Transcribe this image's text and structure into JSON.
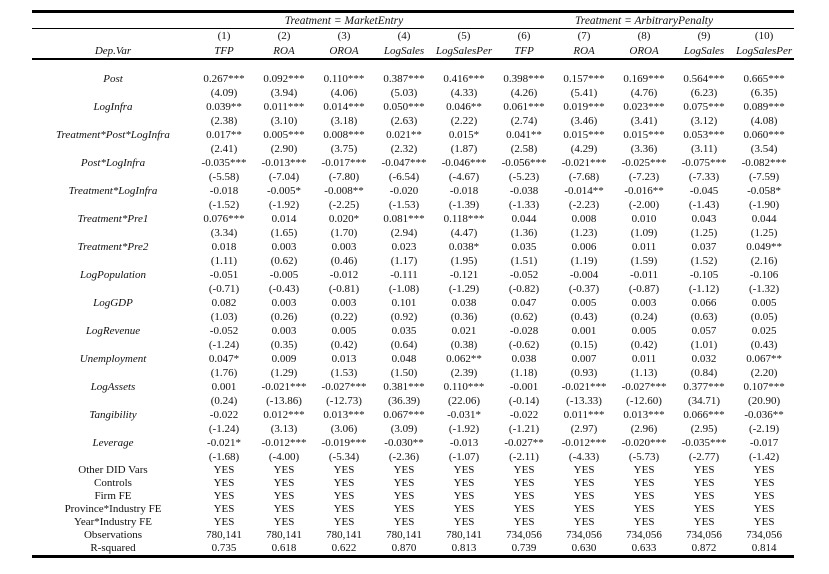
{
  "page": {
    "background": "#ffffff",
    "text_color": "#111111",
    "rule_color": "#000000"
  },
  "table": {
    "group_headers": [
      {
        "label": "Treatment = MarketEntry",
        "span": 5
      },
      {
        "label": "Treatment = ArbitraryPenalty",
        "span": 5
      }
    ],
    "col_numbers": [
      "(1)",
      "(2)",
      "(3)",
      "(4)",
      "(5)",
      "(6)",
      "(7)",
      "(8)",
      "(9)",
      "(10)"
    ],
    "dep_var_label": "Dep.Var",
    "dep_vars": [
      "TFP",
      "ROA",
      "OROA",
      "LogSales",
      "LogSalesPer",
      "TFP",
      "ROA",
      "OROA",
      "LogSales",
      "LogSalesPer"
    ],
    "coef_rows": [
      {
        "label": "Post",
        "coefs": [
          "0.267***",
          "0.092***",
          "0.110***",
          "0.387***",
          "0.416***",
          "0.398***",
          "0.157***",
          "0.169***",
          "0.564***",
          "0.665***"
        ],
        "tstats": [
          "(4.09)",
          "(3.94)",
          "(4.06)",
          "(5.03)",
          "(4.33)",
          "(4.26)",
          "(5.41)",
          "(4.76)",
          "(6.23)",
          "(6.35)"
        ]
      },
      {
        "label": "LogInfra",
        "coefs": [
          "0.039**",
          "0.011***",
          "0.014***",
          "0.050***",
          "0.046**",
          "0.061***",
          "0.019***",
          "0.023***",
          "0.075***",
          "0.089***"
        ],
        "tstats": [
          "(2.38)",
          "(3.10)",
          "(3.18)",
          "(2.63)",
          "(2.22)",
          "(2.74)",
          "(3.46)",
          "(3.41)",
          "(3.12)",
          "(4.08)"
        ]
      },
      {
        "label": "Treatment*Post*LogInfra",
        "coefs": [
          "0.017**",
          "0.005***",
          "0.008***",
          "0.021**",
          "0.015*",
          "0.041**",
          "0.015***",
          "0.015***",
          "0.053***",
          "0.060***"
        ],
        "tstats": [
          "(2.41)",
          "(2.90)",
          "(3.75)",
          "(2.32)",
          "(1.87)",
          "(2.58)",
          "(4.29)",
          "(3.36)",
          "(3.11)",
          "(3.54)"
        ]
      },
      {
        "label": "Post*LogInfra",
        "coefs": [
          "-0.035***",
          "-0.013***",
          "-0.017***",
          "-0.047***",
          "-0.046***",
          "-0.056***",
          "-0.021***",
          "-0.025***",
          "-0.075***",
          "-0.082***"
        ],
        "tstats": [
          "(-5.58)",
          "(-7.04)",
          "(-7.80)",
          "(-6.54)",
          "(-4.67)",
          "(-5.23)",
          "(-7.68)",
          "(-7.23)",
          "(-7.33)",
          "(-7.59)"
        ]
      },
      {
        "label": "Treatment*LogInfra",
        "coefs": [
          "-0.018",
          "-0.005*",
          "-0.008**",
          "-0.020",
          "-0.018",
          "-0.038",
          "-0.014**",
          "-0.016**",
          "-0.045",
          "-0.058*"
        ],
        "tstats": [
          "(-1.52)",
          "(-1.92)",
          "(-2.25)",
          "(-1.53)",
          "(-1.39)",
          "(-1.33)",
          "(-2.23)",
          "(-2.00)",
          "(-1.43)",
          "(-1.90)"
        ]
      },
      {
        "label": "Treatment*Pre1",
        "coefs": [
          "0.076***",
          "0.014",
          "0.020*",
          "0.081***",
          "0.118***",
          "0.044",
          "0.008",
          "0.010",
          "0.043",
          "0.044"
        ],
        "tstats": [
          "(3.34)",
          "(1.65)",
          "(1.70)",
          "(2.94)",
          "(4.47)",
          "(1.36)",
          "(1.23)",
          "(1.09)",
          "(1.25)",
          "(1.25)"
        ]
      },
      {
        "label": "Treatment*Pre2",
        "coefs": [
          "0.018",
          "0.003",
          "0.003",
          "0.023",
          "0.038*",
          "0.035",
          "0.006",
          "0.011",
          "0.037",
          "0.049**"
        ],
        "tstats": [
          "(1.11)",
          "(0.62)",
          "(0.46)",
          "(1.17)",
          "(1.95)",
          "(1.51)",
          "(1.19)",
          "(1.59)",
          "(1.52)",
          "(2.16)"
        ]
      },
      {
        "label": "LogPopulation",
        "coefs": [
          "-0.051",
          "-0.005",
          "-0.012",
          "-0.111",
          "-0.121",
          "-0.052",
          "-0.004",
          "-0.011",
          "-0.105",
          "-0.106"
        ],
        "tstats": [
          "(-0.71)",
          "(-0.43)",
          "(-0.81)",
          "(-1.08)",
          "(-1.29)",
          "(-0.82)",
          "(-0.37)",
          "(-0.87)",
          "(-1.12)",
          "(-1.32)"
        ]
      },
      {
        "label": "LogGDP",
        "coefs": [
          "0.082",
          "0.003",
          "0.003",
          "0.101",
          "0.038",
          "0.047",
          "0.005",
          "0.003",
          "0.066",
          "0.005"
        ],
        "tstats": [
          "(1.03)",
          "(0.26)",
          "(0.22)",
          "(0.92)",
          "(0.36)",
          "(0.62)",
          "(0.43)",
          "(0.24)",
          "(0.63)",
          "(0.05)"
        ]
      },
      {
        "label": "LogRevenue",
        "coefs": [
          "-0.052",
          "0.003",
          "0.005",
          "0.035",
          "0.021",
          "-0.028",
          "0.001",
          "0.005",
          "0.057",
          "0.025"
        ],
        "tstats": [
          "(-1.24)",
          "(0.35)",
          "(0.42)",
          "(0.64)",
          "(0.38)",
          "(-0.62)",
          "(0.15)",
          "(0.42)",
          "(1.01)",
          "(0.43)"
        ]
      },
      {
        "label": "Unemployment",
        "coefs": [
          "0.047*",
          "0.009",
          "0.013",
          "0.048",
          "0.062**",
          "0.038",
          "0.007",
          "0.011",
          "0.032",
          "0.067**"
        ],
        "tstats": [
          "(1.76)",
          "(1.29)",
          "(1.53)",
          "(1.50)",
          "(2.39)",
          "(1.18)",
          "(0.93)",
          "(1.13)",
          "(0.84)",
          "(2.20)"
        ]
      },
      {
        "label": "LogAssets",
        "coefs": [
          "0.001",
          "-0.021***",
          "-0.027***",
          "0.381***",
          "0.110***",
          "-0.001",
          "-0.021***",
          "-0.027***",
          "0.377***",
          "0.107***"
        ],
        "tstats": [
          "(0.24)",
          "(-13.86)",
          "(-12.73)",
          "(36.39)",
          "(22.06)",
          "(-0.14)",
          "(-13.33)",
          "(-12.60)",
          "(34.71)",
          "(20.90)"
        ]
      },
      {
        "label": "Tangibility",
        "coefs": [
          "-0.022",
          "0.012***",
          "0.013***",
          "0.067***",
          "-0.031*",
          "-0.022",
          "0.011***",
          "0.013***",
          "0.066***",
          "-0.036**"
        ],
        "tstats": [
          "(-1.24)",
          "(3.13)",
          "(3.06)",
          "(3.09)",
          "(-1.92)",
          "(-1.21)",
          "(2.97)",
          "(2.96)",
          "(2.95)",
          "(-2.19)"
        ]
      },
      {
        "label": "Leverage",
        "coefs": [
          "-0.021*",
          "-0.012***",
          "-0.019***",
          "-0.030**",
          "-0.013",
          "-0.027**",
          "-0.012***",
          "-0.020***",
          "-0.035***",
          "-0.017"
        ],
        "tstats": [
          "(-1.68)",
          "(-4.00)",
          "(-5.34)",
          "(-2.36)",
          "(-1.07)",
          "(-2.11)",
          "(-4.33)",
          "(-5.73)",
          "(-2.77)",
          "(-1.42)"
        ]
      }
    ],
    "info_rows": [
      {
        "label": "Other DID Vars",
        "values": [
          "YES",
          "YES",
          "YES",
          "YES",
          "YES",
          "YES",
          "YES",
          "YES",
          "YES",
          "YES"
        ]
      },
      {
        "label": "Controls",
        "values": [
          "YES",
          "YES",
          "YES",
          "YES",
          "YES",
          "YES",
          "YES",
          "YES",
          "YES",
          "YES"
        ]
      },
      {
        "label": "Firm FE",
        "values": [
          "YES",
          "YES",
          "YES",
          "YES",
          "YES",
          "YES",
          "YES",
          "YES",
          "YES",
          "YES"
        ]
      },
      {
        "label": "Province*Industry FE",
        "values": [
          "YES",
          "YES",
          "YES",
          "YES",
          "YES",
          "YES",
          "YES",
          "YES",
          "YES",
          "YES"
        ]
      },
      {
        "label": "Year*Industry FE",
        "values": [
          "YES",
          "YES",
          "YES",
          "YES",
          "YES",
          "YES",
          "YES",
          "YES",
          "YES",
          "YES"
        ]
      },
      {
        "label": "Observations",
        "values": [
          "780,141",
          "780,141",
          "780,141",
          "780,141",
          "780,141",
          "734,056",
          "734,056",
          "734,056",
          "734,056",
          "734,056"
        ]
      },
      {
        "label": "R-squared",
        "values": [
          "0.735",
          "0.618",
          "0.622",
          "0.870",
          "0.813",
          "0.739",
          "0.630",
          "0.633",
          "0.872",
          "0.814"
        ]
      }
    ]
  }
}
